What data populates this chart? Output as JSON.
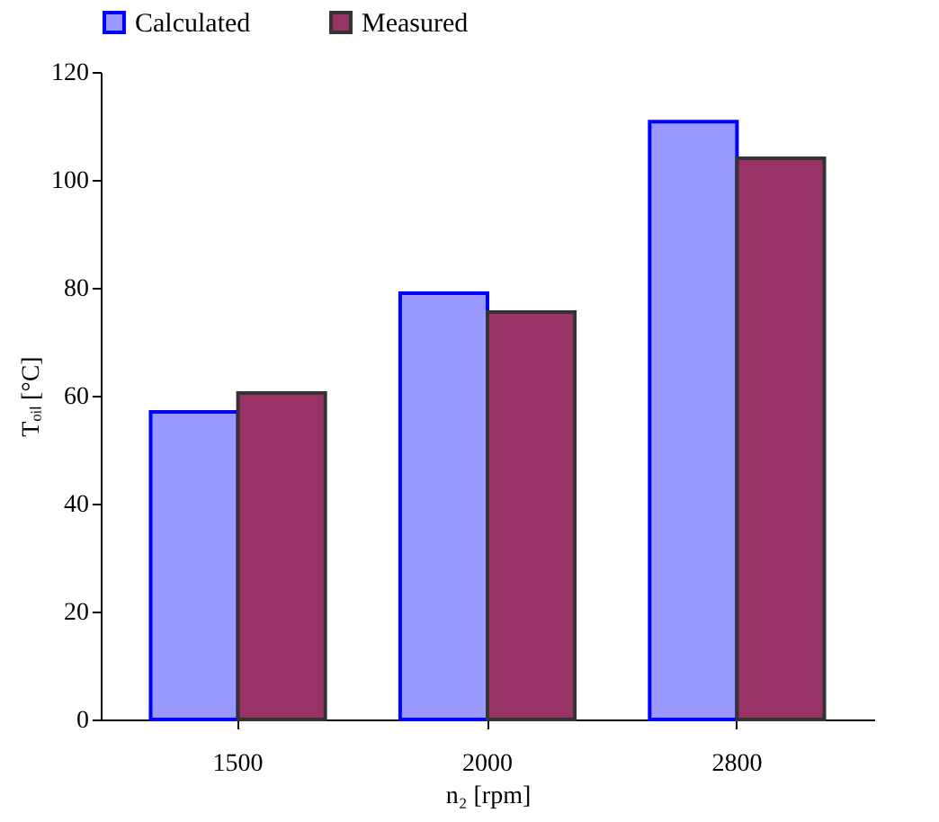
{
  "chart_data": {
    "type": "bar",
    "xlabel": "n₂ [rpm]",
    "ylabel": "Tₒᵢₗ [°C]",
    "categories": [
      "1500",
      "2000",
      "2800"
    ],
    "series": [
      {
        "name": "Calculated",
        "color": "#9999ff",
        "values": [
          57,
          79,
          110.8
        ]
      },
      {
        "name": "Measured",
        "color": "#993366",
        "values": [
          60.5,
          75.5,
          104
        ]
      }
    ],
    "ylim": [
      0,
      120
    ],
    "yticks": [
      0,
      20,
      40,
      60,
      80,
      100,
      120
    ],
    "grid": false,
    "legend": "top"
  }
}
